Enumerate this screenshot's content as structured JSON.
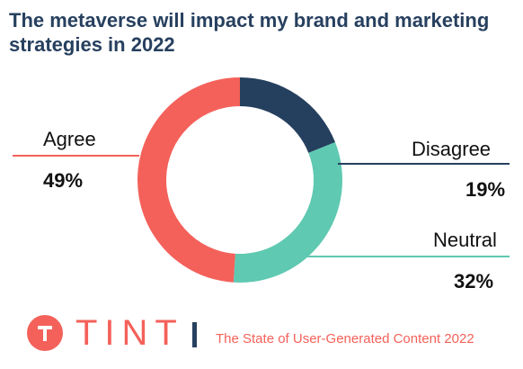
{
  "chart_data": {
    "type": "pie",
    "title": "The metaverse will impact my brand and marketing strategies in 2022",
    "slices": [
      {
        "label": "Disagree",
        "value": 19,
        "value_label": "19%",
        "color": "#253f5e"
      },
      {
        "label": "Neutral",
        "value": 32,
        "value_label": "32%",
        "color": "#5fc9b1"
      },
      {
        "label": "Agree",
        "value": 49,
        "value_label": "49%",
        "color": "#f4615a"
      }
    ],
    "donut": true
  },
  "footer": {
    "brand": "TINT",
    "report": "The State of User-Generated Content 2022",
    "logo_icon": "t-circle-logo"
  }
}
